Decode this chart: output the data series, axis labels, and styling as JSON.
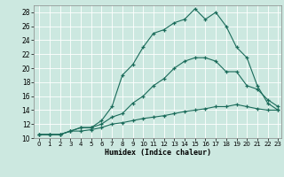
{
  "xlabel": "Humidex (Indice chaleur)",
  "background_color": "#cce8e0",
  "grid_color": "#ffffff",
  "line_color": "#1a6b5a",
  "xlim": [
    -0.5,
    23.3
  ],
  "ylim": [
    10,
    29
  ],
  "xticks": [
    0,
    1,
    2,
    3,
    4,
    5,
    6,
    7,
    8,
    9,
    10,
    11,
    12,
    13,
    14,
    15,
    16,
    17,
    18,
    19,
    20,
    21,
    22,
    23
  ],
  "yticks": [
    10,
    12,
    14,
    16,
    18,
    20,
    22,
    24,
    26,
    28
  ],
  "line1_x": [
    0,
    1,
    2,
    3,
    4,
    5,
    6,
    7,
    8,
    9,
    10,
    11,
    12,
    13,
    14,
    15,
    16,
    17,
    18,
    19,
    20,
    21,
    22,
    23
  ],
  "line1_y": [
    10.5,
    10.5,
    10.5,
    11.0,
    11.0,
    11.2,
    11.5,
    12.0,
    12.2,
    12.5,
    12.8,
    13.0,
    13.2,
    13.5,
    13.8,
    14.0,
    14.2,
    14.5,
    14.5,
    14.8,
    14.5,
    14.2,
    14.0,
    14.0
  ],
  "line2_x": [
    0,
    1,
    2,
    3,
    4,
    5,
    6,
    7,
    8,
    9,
    10,
    11,
    12,
    13,
    14,
    15,
    16,
    17,
    18,
    19,
    20,
    21,
    22,
    23
  ],
  "line2_y": [
    10.5,
    10.5,
    10.5,
    11.0,
    11.5,
    11.5,
    12.0,
    13.0,
    13.5,
    15.0,
    16.0,
    17.5,
    18.5,
    20.0,
    21.0,
    21.5,
    21.5,
    21.0,
    19.5,
    19.5,
    17.5,
    17.0,
    15.5,
    14.5
  ],
  "line3_x": [
    0,
    1,
    2,
    3,
    4,
    5,
    6,
    7,
    8,
    9,
    10,
    11,
    12,
    13,
    14,
    15,
    16,
    17,
    18,
    19,
    20,
    21,
    22,
    23
  ],
  "line3_y": [
    10.5,
    10.5,
    10.5,
    11.0,
    11.5,
    11.5,
    12.5,
    14.5,
    19.0,
    20.5,
    23.0,
    25.0,
    25.5,
    26.5,
    27.0,
    28.5,
    27.0,
    28.0,
    26.0,
    23.0,
    21.5,
    17.5,
    15.0,
    14.0
  ]
}
